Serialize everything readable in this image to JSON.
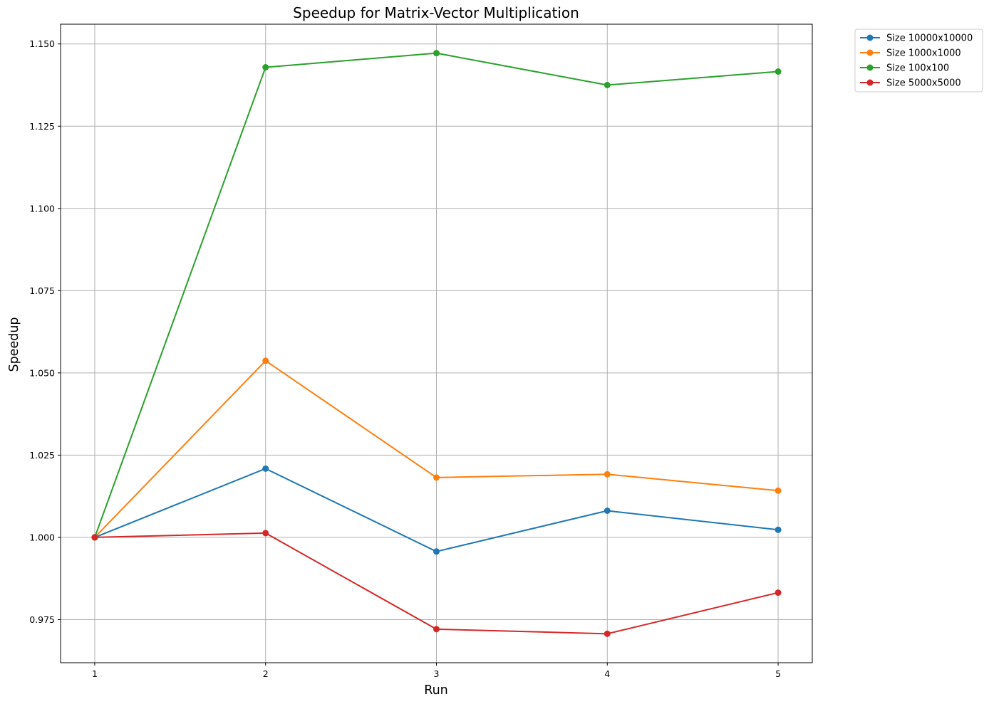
{
  "chart_data": {
    "type": "line",
    "title": "Speedup for Matrix-Vector Multiplication",
    "xlabel": "Run",
    "ylabel": "Speedup",
    "x": [
      1,
      2,
      3,
      4,
      5
    ],
    "xticks": [
      "1",
      "2",
      "3",
      "4",
      "5"
    ],
    "yticks": [
      "0.975",
      "1.000",
      "1.025",
      "1.050",
      "1.075",
      "1.100",
      "1.125",
      "1.150"
    ],
    "ytick_values": [
      0.975,
      1.0,
      1.025,
      1.05,
      1.075,
      1.1,
      1.125,
      1.15
    ],
    "xlim": [
      0.8,
      5.2
    ],
    "ylim": [
      0.9619,
      1.156
    ],
    "grid": true,
    "legend_position": "outside-top-right",
    "series": [
      {
        "name": "Size 10000x10000",
        "color": "#1f77b4",
        "values": [
          1.0,
          1.0209,
          0.9957,
          1.0081,
          1.0023
        ]
      },
      {
        "name": "Size 1000x1000",
        "color": "#ff7f0e",
        "values": [
          1.0,
          1.0537,
          1.0182,
          1.0192,
          1.0142
        ]
      },
      {
        "name": "Size 100x100",
        "color": "#2ca02c",
        "values": [
          1.0,
          1.1429,
          1.1472,
          1.1375,
          1.1416
        ]
      },
      {
        "name": "Size 5000x5000",
        "color": "#d62728",
        "values": [
          1.0,
          1.0013,
          0.9721,
          0.9707,
          0.9832
        ]
      }
    ]
  }
}
